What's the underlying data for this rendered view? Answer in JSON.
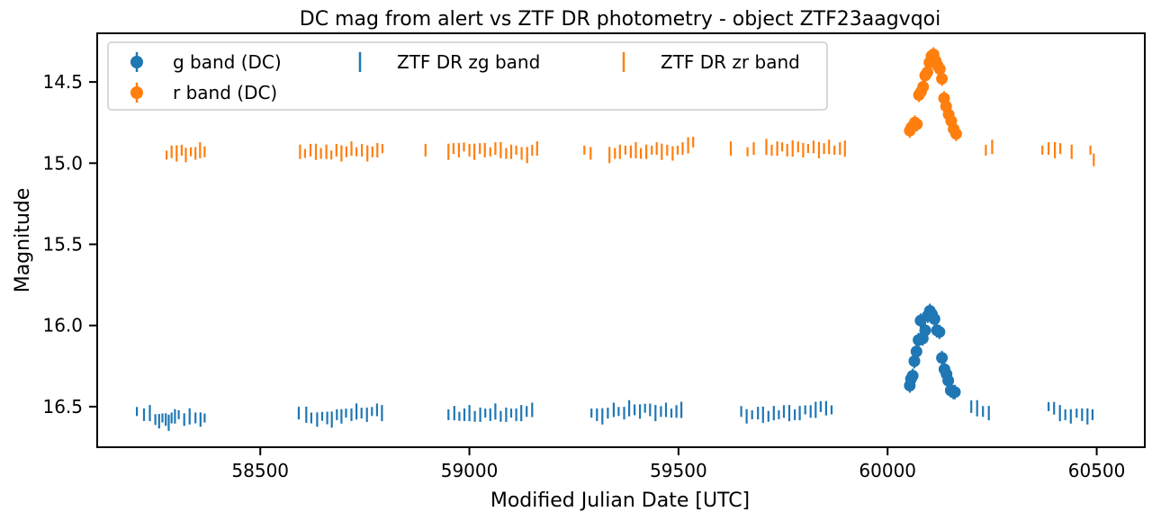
{
  "chart_data": {
    "type": "scatter",
    "title": "DC mag from alert vs ZTF DR photometry - object ZTF23aagvqoi",
    "xlabel": "Modified Julian Date [UTC]",
    "ylabel": "Magnitude",
    "xlim": [
      58110,
      60615
    ],
    "ylim": [
      16.75,
      14.2
    ],
    "y_inverted": true,
    "xticks": [
      58500,
      59000,
      59500,
      60000,
      60500
    ],
    "yticks": [
      14.5,
      15.0,
      15.5,
      16.0,
      16.5
    ],
    "xtick_labels": [
      "58500",
      "59000",
      "59500",
      "60000",
      "60500"
    ],
    "ytick_labels": [
      "14.5",
      "15.0",
      "15.5",
      "16.0",
      "16.5"
    ],
    "grid": false,
    "legend_position": "top-left",
    "legend": [
      {
        "label": "g band (DC)",
        "marker": "circle-errorbar",
        "color": "#1f77b4"
      },
      {
        "label": "ZTF DR zg band",
        "marker": "vline",
        "color": "#1f77b4"
      },
      {
        "label": "ZTF DR zr band",
        "marker": "vline",
        "color": "#ff7f0e"
      },
      {
        "label": "r band (DC)",
        "marker": "circle-errorbar",
        "color": "#ff7f0e"
      }
    ],
    "series": [
      {
        "name": "g band (DC)",
        "kind": "points",
        "color": "#1f77b4",
        "x": [
          60053,
          60056,
          60060,
          60064,
          60069,
          60074,
          60079,
          60084,
          60090,
          60096,
          60101,
          60106,
          60112,
          60118,
          60124,
          60130,
          60136,
          60141,
          60145,
          60151,
          60157,
          60161
        ],
        "y": [
          16.37,
          16.33,
          16.31,
          16.22,
          16.16,
          16.09,
          15.97,
          16.08,
          16.03,
          15.94,
          15.91,
          15.93,
          15.96,
          16.03,
          16.04,
          16.2,
          16.27,
          16.3,
          16.34,
          16.4,
          16.41,
          16.41
        ]
      },
      {
        "name": "r band (DC)",
        "kind": "points",
        "color": "#ff7f0e",
        "x": [
          60053,
          60057,
          60061,
          60065,
          60070,
          60075,
          60080,
          60085,
          60090,
          60095,
          60100,
          60105,
          60110,
          60115,
          60120,
          60125,
          60130,
          60135,
          60140,
          60146,
          60152,
          60158,
          60164
        ],
        "y": [
          14.8,
          14.78,
          14.77,
          14.75,
          14.76,
          14.58,
          14.56,
          14.53,
          14.46,
          14.44,
          14.38,
          14.34,
          14.33,
          14.37,
          14.4,
          14.42,
          14.48,
          14.6,
          14.65,
          14.7,
          14.74,
          14.79,
          14.82
        ]
      },
      {
        "name": "ZTF DR zg band",
        "kind": "errorbar-ticks",
        "color": "#1f77b4",
        "x": [
          58205,
          58222,
          58236,
          58249,
          58258,
          58266,
          58274,
          58281,
          58288,
          58296,
          58305,
          58318,
          58331,
          58345,
          58357,
          58367,
          58592,
          58610,
          58622,
          58636,
          58648,
          58660,
          58671,
          58683,
          58694,
          58705,
          58718,
          58730,
          58742,
          58755,
          58767,
          58779,
          58791,
          58950,
          58964,
          58976,
          58988,
          59000,
          59013,
          59026,
          59038,
          59050,
          59062,
          59075,
          59088,
          59100,
          59112,
          59124,
          59137,
          59150,
          59292,
          59305,
          59318,
          59331,
          59345,
          59357,
          59370,
          59382,
          59395,
          59408,
          59420,
          59432,
          59445,
          59458,
          59470,
          59483,
          59495,
          59507,
          59650,
          59663,
          59676,
          59690,
          59702,
          59715,
          59728,
          59740,
          59752,
          59765,
          59778,
          59790,
          59803,
          59816,
          59828,
          59840,
          59853,
          59866,
          60200,
          60214,
          60228,
          60242,
          60385,
          60398,
          60412,
          60425,
          60438,
          60452,
          60465,
          60478,
          60490
        ],
        "y": [
          16.53,
          16.55,
          16.54,
          16.58,
          16.59,
          16.57,
          16.58,
          16.6,
          16.57,
          16.56,
          16.55,
          16.58,
          16.56,
          16.57,
          16.58,
          16.57,
          16.54,
          16.55,
          16.57,
          16.58,
          16.56,
          16.57,
          16.58,
          16.55,
          16.56,
          16.54,
          16.55,
          16.53,
          16.54,
          16.55,
          16.53,
          16.52,
          16.54,
          16.55,
          16.54,
          16.56,
          16.55,
          16.54,
          16.56,
          16.55,
          16.54,
          16.55,
          16.53,
          16.56,
          16.55,
          16.54,
          16.55,
          16.54,
          16.53,
          16.52,
          16.54,
          16.55,
          16.56,
          16.54,
          16.52,
          16.53,
          16.54,
          16.51,
          16.52,
          16.53,
          16.51,
          16.52,
          16.54,
          16.53,
          16.52,
          16.54,
          16.53,
          16.52,
          16.53,
          16.56,
          16.55,
          16.54,
          16.55,
          16.56,
          16.54,
          16.55,
          16.53,
          16.54,
          16.55,
          16.54,
          16.52,
          16.53,
          16.52,
          16.5,
          16.51,
          16.52,
          16.5,
          16.51,
          16.53,
          16.54,
          16.5,
          16.51,
          16.54,
          16.55,
          16.56,
          16.54,
          16.55,
          16.56,
          16.55
        ]
      },
      {
        "name": "ZTF DR zr band",
        "kind": "errorbar-ticks",
        "color": "#ff7f0e",
        "x": [
          58276,
          58288,
          58300,
          58312,
          58322,
          58334,
          58345,
          58356,
          58367,
          58595,
          58607,
          58620,
          58633,
          58645,
          58658,
          58670,
          58682,
          58694,
          58706,
          58718,
          58730,
          58743,
          58756,
          58768,
          58780,
          58792,
          58895,
          58950,
          58962,
          58975,
          58987,
          59000,
          59012,
          59025,
          59037,
          59050,
          59062,
          59075,
          59088,
          59100,
          59112,
          59125,
          59138,
          59150,
          59162,
          59275,
          59290,
          59335,
          59348,
          59360,
          59373,
          59386,
          59398,
          59410,
          59423,
          59436,
          59448,
          59460,
          59473,
          59486,
          59498,
          59510,
          59523,
          59535,
          59625,
          59665,
          59680,
          59710,
          59723,
          59736,
          59748,
          59760,
          59773,
          59786,
          59798,
          59810,
          59823,
          59836,
          59848,
          59860,
          59873,
          59886,
          59898,
          60235,
          60250,
          60370,
          60385,
          60400,
          60413,
          60440,
          60485,
          60493
        ],
        "y": [
          14.95,
          14.93,
          14.94,
          14.92,
          14.95,
          14.93,
          14.94,
          14.92,
          14.93,
          14.93,
          14.94,
          14.92,
          14.93,
          14.94,
          14.93,
          14.95,
          14.92,
          14.94,
          14.93,
          14.91,
          14.93,
          14.92,
          14.94,
          14.93,
          14.92,
          14.91,
          14.92,
          14.93,
          14.91,
          14.92,
          14.9,
          14.92,
          14.93,
          14.91,
          14.92,
          14.93,
          14.91,
          14.92,
          14.94,
          14.93,
          14.92,
          14.94,
          14.95,
          14.92,
          14.91,
          14.92,
          14.94,
          14.95,
          14.94,
          14.93,
          14.92,
          14.93,
          14.92,
          14.94,
          14.93,
          14.92,
          14.91,
          14.93,
          14.92,
          14.94,
          14.92,
          14.91,
          14.89,
          14.87,
          14.91,
          14.93,
          14.91,
          14.9,
          14.92,
          14.91,
          14.9,
          14.92,
          14.91,
          14.9,
          14.92,
          14.91,
          14.9,
          14.92,
          14.91,
          14.9,
          14.92,
          14.91,
          14.91,
          14.92,
          14.9,
          14.92,
          14.91,
          14.92,
          14.91,
          14.93,
          14.92,
          14.98
        ]
      }
    ]
  }
}
